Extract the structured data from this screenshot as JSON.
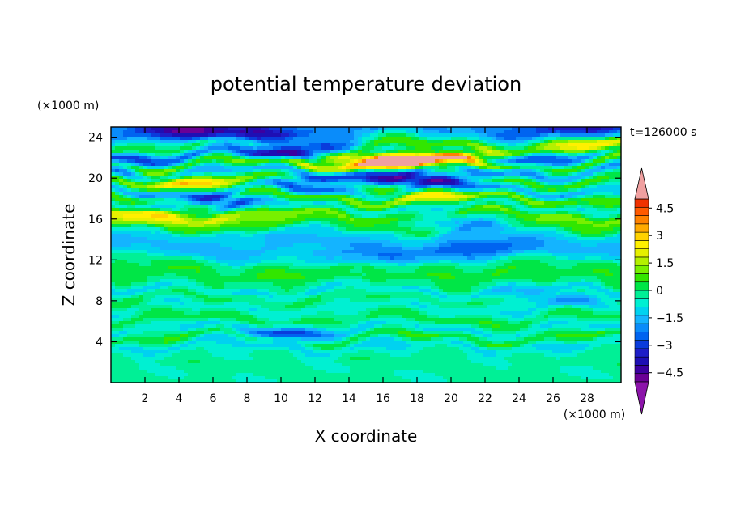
{
  "chart_data": {
    "type": "heatmap",
    "title": "potential temperature deviation",
    "xlabel": "X coordinate",
    "ylabel": "Z coordinate",
    "x_unit": "(×1000 m)",
    "y_unit": "(×1000 m)",
    "time_label": "t=126000 s",
    "xlim": [
      0,
      30
    ],
    "ylim": [
      0,
      25
    ],
    "x_ticks": [
      2,
      4,
      6,
      8,
      10,
      12,
      14,
      16,
      18,
      20,
      22,
      24,
      26,
      28
    ],
    "y_ticks": [
      4,
      8,
      12,
      16,
      20,
      24
    ],
    "colorbar": {
      "min": -5,
      "max": 5,
      "step": 0.5,
      "labels": [
        4.5,
        3,
        1.5,
        0,
        -1.5,
        -3,
        -4.5
      ],
      "label_text": [
        "4.5",
        "3",
        "1.5",
        "0",
        "−1.5",
        "−3",
        "−4.5"
      ],
      "colors": [
        "#6a0096",
        "#3c00a0",
        "#1e0fb4",
        "#1e1ec8",
        "#0a3cdc",
        "#0064f0",
        "#0a8cfa",
        "#14b4ff",
        "#00d2f0",
        "#00f0d2",
        "#00f096",
        "#00e646",
        "#32e600",
        "#78f000",
        "#b4f000",
        "#e6f000",
        "#fff000",
        "#ffd200",
        "#ffaa00",
        "#ff8200",
        "#ff5a00",
        "#f03200"
      ],
      "under_color": "#8c14aa",
      "over_color": "#f0a0a0"
    },
    "field_bands": [
      {
        "z": 1.0,
        "value": 0.15
      },
      {
        "z": 2.5,
        "value": 0.2
      },
      {
        "z": 3.6,
        "value": -0.6
      },
      {
        "z": 4.4,
        "value": 1.0
      },
      {
        "z": 5.2,
        "value": -0.5
      },
      {
        "z": 6.2,
        "value": 0.7
      },
      {
        "z": 7.2,
        "value": -0.3
      },
      {
        "z": 8.2,
        "value": 0.6
      },
      {
        "z": 9.0,
        "value": -0.7
      },
      {
        "z": 9.8,
        "value": 0.5
      },
      {
        "z": 10.7,
        "value": 1.0
      },
      {
        "z": 11.6,
        "value": 0.4
      },
      {
        "z": 12.6,
        "value": -0.8
      },
      {
        "z": 13.5,
        "value": -1.2
      },
      {
        "z": 14.5,
        "value": -0.8
      },
      {
        "z": 15.5,
        "value": 1.2
      },
      {
        "z": 16.3,
        "value": 1.9
      },
      {
        "z": 17.2,
        "value": -0.5
      },
      {
        "z": 18.0,
        "value": 1.5
      },
      {
        "z": 18.8,
        "value": -1.2
      },
      {
        "z": 19.7,
        "value": 1.2
      },
      {
        "z": 20.6,
        "value": -1.4
      },
      {
        "z": 21.4,
        "value": 1.8
      },
      {
        "z": 22.2,
        "value": -1.3
      },
      {
        "z": 23.1,
        "value": 1.2
      },
      {
        "z": 24.0,
        "value": -0.5
      },
      {
        "z": 24.7,
        "value": -1.6
      }
    ],
    "field_features": [
      {
        "x": 17.0,
        "z": 21.9,
        "value": 4.0
      },
      {
        "x": 14.0,
        "z": 21.5,
        "value": 2.6
      },
      {
        "x": 20.5,
        "z": 22.0,
        "value": 3.0
      },
      {
        "x": 11.0,
        "z": 22.7,
        "value": -4.2
      },
      {
        "x": 18.5,
        "z": 19.9,
        "value": -4.0
      },
      {
        "x": 12.5,
        "z": 19.6,
        "value": -2.4
      },
      {
        "x": 6.0,
        "z": 17.8,
        "value": -2.8
      },
      {
        "x": 5.0,
        "z": 19.5,
        "value": 2.8
      },
      {
        "x": 18.0,
        "z": 18.2,
        "value": 2.0
      },
      {
        "x": 20.0,
        "z": 15.8,
        "value": -2.6
      },
      {
        "x": 3.0,
        "z": 16.2,
        "value": 2.0
      },
      {
        "x": 8.0,
        "z": 24.3,
        "value": -2.3
      },
      {
        "x": 4.5,
        "z": 24.5,
        "value": -3.0
      },
      {
        "x": 28.5,
        "z": 23.2,
        "value": 2.6
      },
      {
        "x": 27.5,
        "z": 24.6,
        "value": -2.4
      },
      {
        "x": 25.0,
        "z": 21.6,
        "value": -1.9
      },
      {
        "x": 1.5,
        "z": 21.7,
        "value": -2.0
      },
      {
        "x": 10.5,
        "z": 4.7,
        "value": -2.2
      },
      {
        "x": 14.5,
        "z": 12.2,
        "value": -1.8
      },
      {
        "x": 22.0,
        "z": 13.0,
        "value": -1.6
      },
      {
        "x": 26.0,
        "z": 8.2,
        "value": -1.5
      }
    ]
  }
}
